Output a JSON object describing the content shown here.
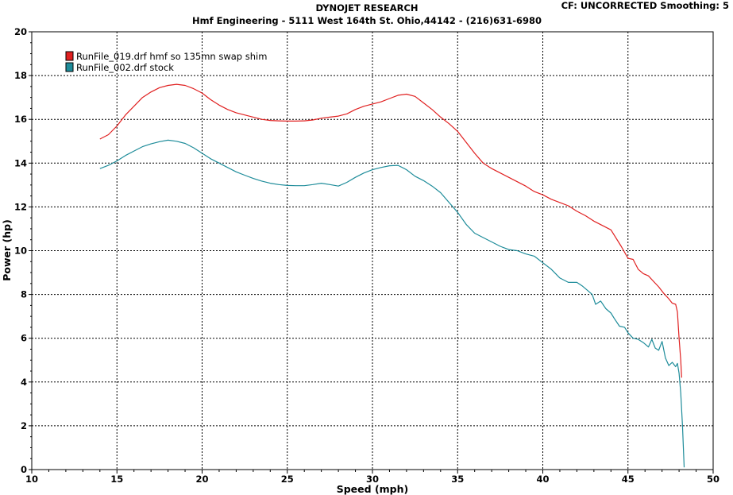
{
  "header": {
    "title": "DYNOJET RESEARCH",
    "subtitle": "Hmf Engineering - 5111 West 164th St. Ohio,44142 - (216)631-6980",
    "status": "CF: UNCORRECTED  Smoothing: 5"
  },
  "chart_data": {
    "type": "line",
    "xlabel": "Speed (mph)",
    "ylabel": "Power (hp)",
    "xlim": [
      10,
      50
    ],
    "ylim": [
      0,
      20
    ],
    "x_ticks": [
      10,
      15,
      20,
      25,
      30,
      35,
      40,
      45,
      50
    ],
    "y_ticks": [
      0,
      2,
      4,
      6,
      8,
      10,
      12,
      14,
      16,
      18,
      20
    ],
    "grid": true,
    "legend_position": "top-left",
    "series": [
      {
        "name": "RunFile_019.drf hmf so 135mn swap shim",
        "color": "#e02020",
        "points": [
          [
            14.0,
            15.1
          ],
          [
            14.5,
            15.3
          ],
          [
            15.0,
            15.7
          ],
          [
            15.5,
            16.2
          ],
          [
            16.0,
            16.6
          ],
          [
            16.5,
            17.0
          ],
          [
            17.0,
            17.25
          ],
          [
            17.5,
            17.45
          ],
          [
            18.0,
            17.55
          ],
          [
            18.5,
            17.6
          ],
          [
            19.0,
            17.55
          ],
          [
            19.5,
            17.4
          ],
          [
            20.0,
            17.2
          ],
          [
            20.5,
            16.9
          ],
          [
            21.0,
            16.65
          ],
          [
            21.5,
            16.45
          ],
          [
            22.0,
            16.3
          ],
          [
            22.5,
            16.2
          ],
          [
            23.0,
            16.1
          ],
          [
            23.5,
            16.0
          ],
          [
            24.0,
            15.95
          ],
          [
            24.5,
            15.93
          ],
          [
            25.0,
            15.92
          ],
          [
            25.5,
            15.92
          ],
          [
            26.0,
            15.93
          ],
          [
            26.5,
            15.97
          ],
          [
            27.0,
            16.05
          ],
          [
            27.5,
            16.1
          ],
          [
            28.0,
            16.15
          ],
          [
            28.5,
            16.25
          ],
          [
            29.0,
            16.45
          ],
          [
            29.5,
            16.6
          ],
          [
            30.0,
            16.7
          ],
          [
            30.5,
            16.8
          ],
          [
            31.0,
            16.95
          ],
          [
            31.5,
            17.1
          ],
          [
            32.0,
            17.15
          ],
          [
            32.5,
            17.05
          ],
          [
            33.0,
            16.75
          ],
          [
            33.5,
            16.45
          ],
          [
            34.0,
            16.1
          ],
          [
            34.5,
            15.8
          ],
          [
            35.0,
            15.45
          ],
          [
            35.5,
            14.95
          ],
          [
            36.0,
            14.45
          ],
          [
            36.5,
            14.0
          ],
          [
            37.0,
            13.75
          ],
          [
            37.5,
            13.55
          ],
          [
            38.0,
            13.35
          ],
          [
            38.5,
            13.15
          ],
          [
            39.0,
            12.95
          ],
          [
            39.5,
            12.7
          ],
          [
            40.0,
            12.55
          ],
          [
            40.5,
            12.35
          ],
          [
            41.0,
            12.2
          ],
          [
            41.5,
            12.05
          ],
          [
            42.0,
            11.8
          ],
          [
            42.5,
            11.6
          ],
          [
            43.0,
            11.35
          ],
          [
            43.5,
            11.15
          ],
          [
            44.0,
            10.95
          ],
          [
            44.2,
            10.7
          ],
          [
            44.6,
            10.2
          ],
          [
            45.0,
            9.65
          ],
          [
            45.3,
            9.6
          ],
          [
            45.6,
            9.15
          ],
          [
            45.9,
            8.95
          ],
          [
            46.2,
            8.85
          ],
          [
            46.5,
            8.6
          ],
          [
            46.8,
            8.35
          ],
          [
            47.1,
            8.05
          ],
          [
            47.4,
            7.8
          ],
          [
            47.6,
            7.6
          ],
          [
            47.8,
            7.55
          ],
          [
            47.9,
            7.2
          ],
          [
            48.0,
            6.0
          ],
          [
            48.1,
            5.0
          ],
          [
            48.15,
            4.2
          ]
        ]
      },
      {
        "name": "RunFile_002.drf stock",
        "color": "#1e8c9a",
        "points": [
          [
            14.0,
            13.75
          ],
          [
            14.5,
            13.9
          ],
          [
            15.0,
            14.1
          ],
          [
            15.5,
            14.35
          ],
          [
            16.0,
            14.55
          ],
          [
            16.5,
            14.75
          ],
          [
            17.0,
            14.88
          ],
          [
            17.5,
            14.98
          ],
          [
            18.0,
            15.05
          ],
          [
            18.5,
            15.0
          ],
          [
            19.0,
            14.9
          ],
          [
            19.5,
            14.7
          ],
          [
            20.0,
            14.45
          ],
          [
            20.5,
            14.2
          ],
          [
            21.0,
            14.0
          ],
          [
            21.5,
            13.8
          ],
          [
            22.0,
            13.6
          ],
          [
            22.5,
            13.45
          ],
          [
            23.0,
            13.3
          ],
          [
            23.5,
            13.18
          ],
          [
            24.0,
            13.08
          ],
          [
            24.5,
            13.02
          ],
          [
            25.0,
            12.98
          ],
          [
            25.5,
            12.97
          ],
          [
            26.0,
            12.97
          ],
          [
            26.5,
            13.02
          ],
          [
            27.0,
            13.08
          ],
          [
            27.5,
            13.02
          ],
          [
            28.0,
            12.95
          ],
          [
            28.5,
            13.12
          ],
          [
            29.0,
            13.35
          ],
          [
            29.5,
            13.55
          ],
          [
            30.0,
            13.7
          ],
          [
            30.5,
            13.8
          ],
          [
            31.0,
            13.88
          ],
          [
            31.5,
            13.9
          ],
          [
            32.0,
            13.7
          ],
          [
            32.5,
            13.4
          ],
          [
            33.0,
            13.2
          ],
          [
            33.5,
            12.95
          ],
          [
            34.0,
            12.65
          ],
          [
            34.5,
            12.2
          ],
          [
            35.0,
            11.75
          ],
          [
            35.5,
            11.2
          ],
          [
            36.0,
            10.8
          ],
          [
            36.5,
            10.6
          ],
          [
            37.0,
            10.4
          ],
          [
            37.5,
            10.2
          ],
          [
            38.0,
            10.05
          ],
          [
            38.5,
            10.0
          ],
          [
            39.0,
            9.85
          ],
          [
            39.5,
            9.75
          ],
          [
            40.0,
            9.45
          ],
          [
            40.5,
            9.15
          ],
          [
            41.0,
            8.75
          ],
          [
            41.5,
            8.55
          ],
          [
            42.0,
            8.55
          ],
          [
            42.3,
            8.4
          ],
          [
            42.6,
            8.2
          ],
          [
            42.9,
            8.0
          ],
          [
            43.1,
            7.55
          ],
          [
            43.4,
            7.7
          ],
          [
            43.7,
            7.35
          ],
          [
            44.0,
            7.15
          ],
          [
            44.2,
            6.9
          ],
          [
            44.5,
            6.55
          ],
          [
            44.8,
            6.5
          ],
          [
            45.0,
            6.25
          ],
          [
            45.3,
            6.0
          ],
          [
            45.6,
            5.95
          ],
          [
            45.9,
            5.8
          ],
          [
            46.2,
            5.6
          ],
          [
            46.4,
            5.95
          ],
          [
            46.6,
            5.55
          ],
          [
            46.8,
            5.45
          ],
          [
            47.0,
            5.85
          ],
          [
            47.2,
            5.1
          ],
          [
            47.4,
            4.75
          ],
          [
            47.6,
            4.9
          ],
          [
            47.8,
            4.7
          ],
          [
            47.9,
            4.85
          ],
          [
            48.0,
            4.4
          ],
          [
            48.1,
            3.5
          ],
          [
            48.2,
            2.0
          ],
          [
            48.3,
            0.1
          ]
        ]
      }
    ]
  }
}
